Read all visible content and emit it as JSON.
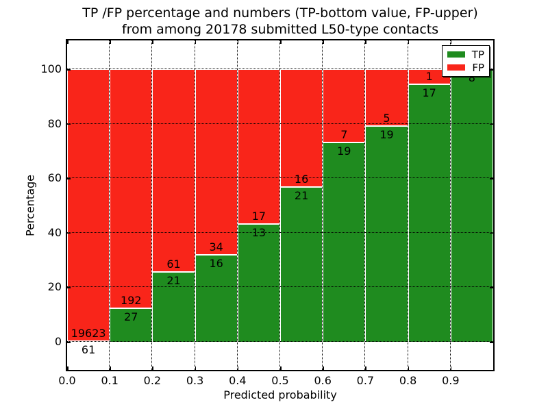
{
  "figure": {
    "title_lines": [
      "TP /FP percentage and numbers (TP-bottom value, FP-upper)",
      "from among 20178 submitted L50-type contacts"
    ]
  },
  "chart_data": {
    "type": "bar",
    "stacked": true,
    "normalized_to_percent": 100,
    "title": "TP /FP percentage and numbers (TP-bottom value, FP-upper) from among 20178 submitted L50-type contacts",
    "xlabel": "Predicted probability",
    "ylabel": "Percentage",
    "categories": [
      "0.0-0.1",
      "0.1-0.2",
      "0.2-0.3",
      "0.3-0.4",
      "0.4-0.5",
      "0.5-0.6",
      "0.6-0.7",
      "0.7-0.8",
      "0.8-0.9",
      "0.9-1.0"
    ],
    "series": [
      {
        "name": "TP",
        "color": "#1f8b1f",
        "values": [
          61,
          27,
          21,
          16,
          13,
          21,
          19,
          19,
          17,
          8
        ]
      },
      {
        "name": "FP",
        "color": "#f9251a",
        "values": [
          19623,
          192,
          61,
          34,
          17,
          16,
          7,
          5,
          1,
          0
        ]
      }
    ],
    "total_contacts": 20178,
    "x_tick_labels": [
      "0.0",
      "0.1",
      "0.2",
      "0.3",
      "0.4",
      "0.5",
      "0.6",
      "0.7",
      "0.8",
      "0.9"
    ],
    "y_tick_values": [
      0,
      20,
      40,
      60,
      80,
      100
    ],
    "xlim": [
      0,
      1
    ],
    "ylim": [
      -10.3,
      110.6
    ],
    "grid": "dotted",
    "legend": {
      "position": "upper right",
      "entries": [
        {
          "label": "TP",
          "color": "#1f8b1f"
        },
        {
          "label": "FP",
          "color": "#f9251a"
        }
      ]
    }
  }
}
